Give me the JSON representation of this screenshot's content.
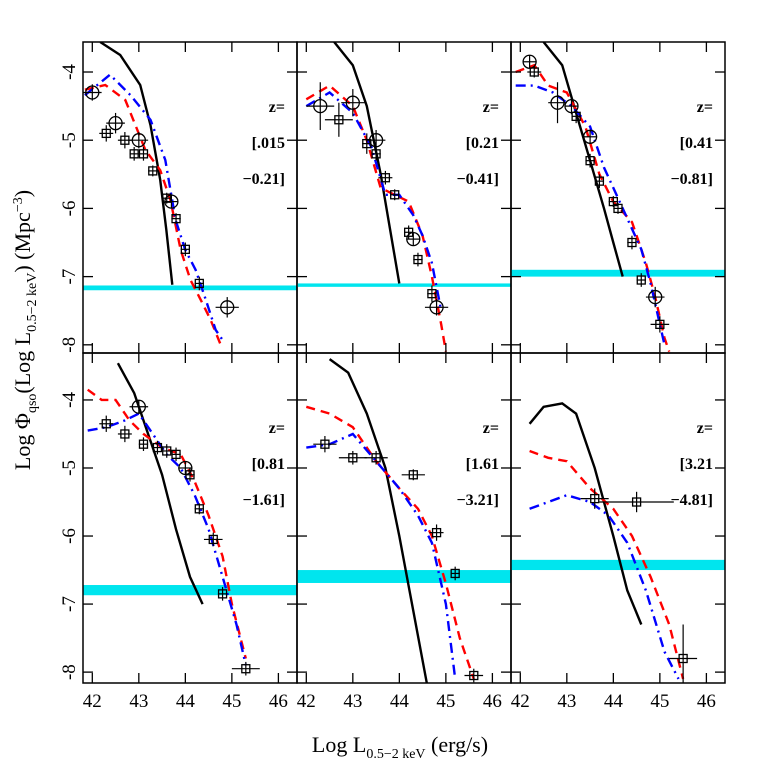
{
  "x_label": [
    "Log L",
    "0.5−2 keV",
    " (erg/s)"
  ],
  "y_label": [
    "Log Φ",
    "qso",
    "(Log L",
    "0.5−2 keV",
    ")   (Mpc",
    "−3",
    ")"
  ],
  "chart_data": [
    {
      "type": "line",
      "z_label": [
        "z=",
        "[.015",
        "−0.21]"
      ],
      "xlim": [
        41.8,
        46.4
      ],
      "ylim": [
        -8.12,
        -3.56
      ],
      "xticks": [
        42,
        43,
        44,
        45,
        46
      ],
      "yticks": [
        -4,
        -5,
        -6,
        -7,
        -8
      ],
      "band": {
        "color": "#00e5ee",
        "ylim": [
          -7.2,
          -7.13
        ]
      },
      "series": [
        {
          "color": "#000000",
          "dash": "solid",
          "x": [
            42.17,
            42.6,
            43.03,
            43.25,
            43.46,
            43.59,
            43.72
          ],
          "y": [
            -3.56,
            -3.75,
            -4.19,
            -4.78,
            -5.58,
            -6.31,
            -7.12
          ]
        },
        {
          "color": "#ff0000",
          "dash": "dashed",
          "x": [
            41.84,
            42.28,
            42.71,
            43.14,
            43.46,
            43.68,
            43.9,
            44.11,
            44.33,
            44.54,
            44.76
          ],
          "y": [
            -4.26,
            -4.19,
            -4.41,
            -5.14,
            -5.44,
            -5.88,
            -6.61,
            -7.05,
            -7.34,
            -7.63,
            -8.0
          ]
        },
        {
          "color": "#0000ff",
          "dash": "dashdot",
          "x": [
            41.84,
            42.38,
            42.82,
            43.25,
            43.57,
            43.79,
            44.0,
            44.22,
            44.44,
            44.65,
            44.8
          ],
          "y": [
            -4.34,
            -4.04,
            -4.34,
            -4.7,
            -5.29,
            -6.17,
            -6.61,
            -6.9,
            -7.34,
            -7.78,
            -7.93
          ]
        }
      ],
      "points": [
        {
          "marker": "circle",
          "x": [
            42.0,
            42.5,
            43.0,
            43.7,
            44.9
          ],
          "y": [
            -4.3,
            -4.75,
            -5.0,
            -5.9,
            -7.45
          ],
          "xerr": [
            0.2,
            0.2,
            0.2,
            0.15,
            0.25
          ],
          "yerr": [
            0.12,
            0.15,
            0.12,
            0.1,
            0.15
          ]
        },
        {
          "marker": "square",
          "x": [
            42.3,
            42.7,
            42.9,
            43.1,
            43.3,
            43.6,
            43.8,
            44.0,
            44.3
          ],
          "y": [
            -4.9,
            -5.0,
            -5.2,
            -5.2,
            -5.45,
            -5.85,
            -6.15,
            -6.6,
            -7.1
          ],
          "xerr": [
            0.15,
            0.15,
            0.1,
            0.1,
            0.1,
            0.1,
            0.1,
            0.1,
            0.1
          ],
          "yerr": [
            0.12,
            0.12,
            0.1,
            0.1,
            0.08,
            0.08,
            0.08,
            0.1,
            0.1
          ]
        }
      ]
    },
    {
      "type": "line",
      "z_label": [
        "z=",
        "[0.21",
        "−0.41]"
      ],
      "xlim": [
        41.8,
        46.4
      ],
      "ylim": [
        -8.12,
        -3.56
      ],
      "xticks": [
        42,
        43,
        44,
        45,
        46
      ],
      "yticks": [
        -4,
        -5,
        -6,
        -7,
        -8
      ],
      "band": {
        "color": "#00e5ee",
        "ylim": [
          -7.15,
          -7.1
        ]
      },
      "series": [
        {
          "color": "#000000",
          "dash": "solid",
          "x": [
            42.6,
            43.0,
            43.3,
            43.6,
            43.8,
            44.0
          ],
          "y": [
            -3.56,
            -3.9,
            -4.5,
            -5.5,
            -6.3,
            -7.1
          ]
        },
        {
          "color": "#ff0000",
          "dash": "dashed",
          "x": [
            42.0,
            42.5,
            43.0,
            43.3,
            43.6,
            43.9,
            44.2,
            44.5,
            44.7,
            44.9,
            45.0
          ],
          "y": [
            -4.4,
            -4.2,
            -4.5,
            -5.0,
            -5.7,
            -5.8,
            -5.9,
            -6.4,
            -7.0,
            -7.7,
            -8.1
          ]
        },
        {
          "color": "#0000ff",
          "dash": "dashdot",
          "x": [
            42.0,
            42.5,
            43.0,
            43.4,
            43.7,
            44.0,
            44.3,
            44.5,
            44.7,
            44.9
          ],
          "y": [
            -4.5,
            -4.3,
            -4.6,
            -5.1,
            -5.8,
            -5.8,
            -6.1,
            -6.4,
            -6.8,
            -7.5
          ]
        }
      ],
      "points": [
        {
          "marker": "circle",
          "x": [
            42.3,
            43.0,
            43.5,
            44.3,
            44.8
          ],
          "y": [
            -4.5,
            -4.45,
            -5.0,
            -6.45,
            -7.45
          ],
          "xerr": [
            0.3,
            0.25,
            0.2,
            0.15,
            0.25
          ],
          "yerr": [
            0.35,
            0.2,
            0.15,
            0.1,
            0.12
          ]
        },
        {
          "marker": "square",
          "x": [
            42.7,
            43.3,
            43.5,
            43.7,
            43.9,
            44.2,
            44.4,
            44.7
          ],
          "y": [
            -4.7,
            -5.05,
            -5.2,
            -5.55,
            -5.8,
            -6.35,
            -6.75,
            -7.25
          ],
          "xerr": [
            0.3,
            0.1,
            0.1,
            0.15,
            0.1,
            0.1,
            0.1,
            0.1
          ],
          "yerr": [
            0.25,
            0.15,
            0.1,
            0.1,
            0.08,
            0.1,
            0.1,
            0.12
          ]
        }
      ]
    },
    {
      "type": "line",
      "z_label": [
        "z=",
        "[0.41",
        "−0.81]"
      ],
      "xlim": [
        41.8,
        46.4
      ],
      "ylim": [
        -8.12,
        -3.56
      ],
      "xticks": [
        42,
        43,
        44,
        45,
        46
      ],
      "yticks": [
        -4,
        -5,
        -6,
        -7,
        -8
      ],
      "band": {
        "color": "#00e5ee",
        "ylim": [
          -7.0,
          -6.9
        ]
      },
      "series": [
        {
          "color": "#000000",
          "dash": "solid",
          "x": [
            42.5,
            42.9,
            43.2,
            43.5,
            43.8,
            44.0,
            44.2
          ],
          "y": [
            -3.56,
            -3.9,
            -4.6,
            -5.3,
            -6.0,
            -6.5,
            -7.0
          ]
        },
        {
          "color": "#ff0000",
          "dash": "dashed",
          "x": [
            41.9,
            42.3,
            42.6,
            43.0,
            43.4,
            43.7,
            44.0,
            44.4,
            44.7,
            44.9,
            45.1,
            45.2
          ],
          "y": [
            -4.0,
            -3.9,
            -4.2,
            -4.3,
            -4.8,
            -5.5,
            -5.9,
            -6.2,
            -6.8,
            -7.3,
            -7.9,
            -8.1
          ]
        },
        {
          "color": "#0000ff",
          "dash": "dashdot",
          "x": [
            41.9,
            42.3,
            42.7,
            43.1,
            43.5,
            43.8,
            44.2,
            44.6,
            44.8,
            45.0,
            45.1
          ],
          "y": [
            -4.2,
            -4.2,
            -4.3,
            -4.5,
            -4.8,
            -5.4,
            -6.0,
            -6.6,
            -7.1,
            -7.7,
            -8.0
          ]
        }
      ],
      "points": [
        {
          "marker": "circle",
          "x": [
            42.2,
            42.8,
            43.1,
            43.5,
            44.9
          ],
          "y": [
            -3.85,
            -4.45,
            -4.5,
            -4.95,
            -7.3
          ],
          "xerr": [
            0.15,
            0.2,
            0.15,
            0.15,
            0.2
          ],
          "yerr": [
            0.1,
            0.3,
            0.12,
            0.1,
            0.15
          ]
        },
        {
          "marker": "square",
          "x": [
            42.3,
            43.2,
            43.5,
            43.7,
            44.0,
            44.1,
            44.4,
            44.6,
            45.0
          ],
          "y": [
            -4.0,
            -4.65,
            -5.3,
            -5.6,
            -5.9,
            -6.0,
            -6.5,
            -7.05,
            -7.7
          ],
          "xerr": [
            0.15,
            0.1,
            0.1,
            0.1,
            0.1,
            0.1,
            0.1,
            0.1,
            0.2
          ],
          "yerr": [
            0.08,
            0.1,
            0.1,
            0.1,
            0.08,
            0.08,
            0.1,
            0.1,
            0.12
          ]
        }
      ]
    },
    {
      "type": "line",
      "z_label": [
        "z=",
        "[0.81",
        "−1.61]"
      ],
      "xlim": [
        41.8,
        46.4
      ],
      "ylim": [
        -8.16,
        -3.31
      ],
      "xticks": [
        42,
        43,
        44,
        45,
        46
      ],
      "yticks": [
        -4,
        -5,
        -6,
        -7,
        -8
      ],
      "band": {
        "color": "#00e5ee",
        "ylim": [
          -6.87,
          -6.72
        ]
      },
      "series": [
        {
          "color": "#000000",
          "dash": "solid",
          "x": [
            42.55,
            42.9,
            43.2,
            43.5,
            43.8,
            44.1,
            44.37
          ],
          "y": [
            -3.46,
            -3.9,
            -4.5,
            -5.1,
            -5.9,
            -6.6,
            -7.0
          ]
        },
        {
          "color": "#ff0000",
          "dash": "dashed",
          "x": [
            41.9,
            42.2,
            42.5,
            42.8,
            43.1,
            43.5,
            43.9,
            44.2,
            44.5,
            44.8,
            45.0,
            45.3
          ],
          "y": [
            -3.85,
            -4.0,
            -4.0,
            -4.3,
            -4.5,
            -4.7,
            -4.8,
            -5.2,
            -5.7,
            -6.3,
            -7.0,
            -7.8
          ]
        },
        {
          "color": "#0000ff",
          "dash": "dashdot",
          "x": [
            41.9,
            42.3,
            42.7,
            43.0,
            43.3,
            43.6,
            43.9,
            44.2,
            44.5,
            44.8,
            45.1,
            45.3
          ],
          "y": [
            -4.45,
            -4.4,
            -4.3,
            -4.2,
            -4.5,
            -4.8,
            -5.0,
            -5.4,
            -5.9,
            -6.6,
            -7.3,
            -7.9
          ]
        }
      ],
      "points": [
        {
          "marker": "circle",
          "x": [
            43.0,
            44.0
          ],
          "y": [
            -4.1,
            -5.0
          ],
          "xerr": [
            0.2,
            0.15
          ],
          "yerr": [
            0.1,
            0.1
          ]
        },
        {
          "marker": "square",
          "x": [
            42.3,
            42.7,
            43.1,
            43.4,
            43.6,
            43.8,
            44.1,
            44.3,
            44.6,
            44.8,
            45.3
          ],
          "y": [
            -4.35,
            -4.5,
            -4.65,
            -4.7,
            -4.75,
            -4.8,
            -5.1,
            -5.6,
            -6.05,
            -6.85,
            -7.95
          ],
          "xerr": [
            0.15,
            0.15,
            0.1,
            0.1,
            0.1,
            0.1,
            0.1,
            0.1,
            0.2,
            0.1,
            0.3
          ],
          "yerr": [
            0.12,
            0.12,
            0.1,
            0.1,
            0.1,
            0.1,
            0.1,
            0.08,
            0.1,
            0.1,
            0.1
          ]
        }
      ]
    },
    {
      "type": "line",
      "z_label": [
        "z=",
        "[1.61",
        "−3.21]"
      ],
      "xlim": [
        41.8,
        46.4
      ],
      "ylim": [
        -8.16,
        -3.31
      ],
      "xticks": [
        42,
        43,
        44,
        45,
        46
      ],
      "yticks": [
        -4,
        -5,
        -6,
        -7,
        -8
      ],
      "band": {
        "color": "#00e5ee",
        "ylim": [
          -6.69,
          -6.5
        ]
      },
      "series": [
        {
          "color": "#000000",
          "dash": "solid",
          "x": [
            42.5,
            42.9,
            43.3,
            43.7,
            44.0,
            44.3,
            44.6
          ],
          "y": [
            -3.4,
            -3.6,
            -4.2,
            -5.0,
            -6.0,
            -7.1,
            -8.2
          ]
        },
        {
          "color": "#ff0000",
          "dash": "dashed",
          "x": [
            42.0,
            42.5,
            43.0,
            43.5,
            44.0,
            44.4,
            44.7,
            45.0,
            45.3,
            45.6
          ],
          "y": [
            -4.1,
            -4.2,
            -4.4,
            -4.9,
            -5.3,
            -5.6,
            -6.0,
            -6.7,
            -7.5,
            -8.1
          ]
        },
        {
          "color": "#0000ff",
          "dash": "dashdot",
          "x": [
            42.0,
            42.5,
            43.0,
            43.5,
            44.0,
            44.4,
            44.7,
            45.0,
            45.2
          ],
          "y": [
            -4.7,
            -4.65,
            -4.5,
            -4.9,
            -5.3,
            -5.7,
            -6.1,
            -7.0,
            -8.1
          ]
        }
      ],
      "points": [
        {
          "marker": "square",
          "x": [
            42.4,
            43.0,
            43.5,
            44.3,
            44.8,
            45.2,
            45.6
          ],
          "y": [
            -4.65,
            -4.85,
            -4.85,
            -5.1,
            -5.95,
            -6.55,
            -8.05
          ],
          "xerr": [
            0.25,
            0.3,
            0.25,
            0.25,
            0.15,
            0.1,
            0.2
          ],
          "yerr": [
            0.12,
            0.1,
            0.1,
            0.08,
            0.12,
            0.1,
            0.1
          ]
        }
      ]
    },
    {
      "type": "line",
      "z_label": [
        "z=",
        "[3.21",
        "−4.81]"
      ],
      "xlim": [
        41.8,
        46.4
      ],
      "ylim": [
        -8.16,
        -3.31
      ],
      "xticks": [
        42,
        43,
        44,
        45,
        46
      ],
      "yticks": [
        -4,
        -5,
        -6,
        -7,
        -8
      ],
      "band": {
        "color": "#00e5ee",
        "ylim": [
          -6.5,
          -6.35
        ]
      },
      "series": [
        {
          "color": "#000000",
          "dash": "solid",
          "x": [
            42.2,
            42.5,
            42.9,
            43.2,
            43.6,
            44.0,
            44.3,
            44.6
          ],
          "y": [
            -4.35,
            -4.1,
            -4.05,
            -4.2,
            -5.0,
            -6.0,
            -6.8,
            -7.3
          ]
        },
        {
          "color": "#ff0000",
          "dash": "dashed",
          "x": [
            42.2,
            42.6,
            43.0,
            43.5,
            44.0,
            44.4,
            44.8,
            45.2,
            45.5
          ],
          "y": [
            -4.75,
            -4.85,
            -4.9,
            -5.3,
            -5.6,
            -6.0,
            -6.6,
            -7.3,
            -8.1
          ]
        },
        {
          "color": "#0000ff",
          "dash": "dashdot",
          "x": [
            42.2,
            42.6,
            43.0,
            43.5,
            43.9,
            44.3,
            44.7,
            45.1,
            45.4
          ],
          "y": [
            -5.6,
            -5.5,
            -5.4,
            -5.5,
            -5.7,
            -6.1,
            -6.8,
            -7.7,
            -8.1
          ]
        }
      ],
      "points": [
        {
          "marker": "square",
          "x": [
            43.6,
            44.5,
            45.5
          ],
          "y": [
            -5.45,
            -5.5,
            -7.8
          ],
          "xerr": [
            0.3,
            0.8,
            0.3
          ],
          "yerr": [
            0.15,
            0.15,
            0.5
          ]
        }
      ]
    }
  ]
}
